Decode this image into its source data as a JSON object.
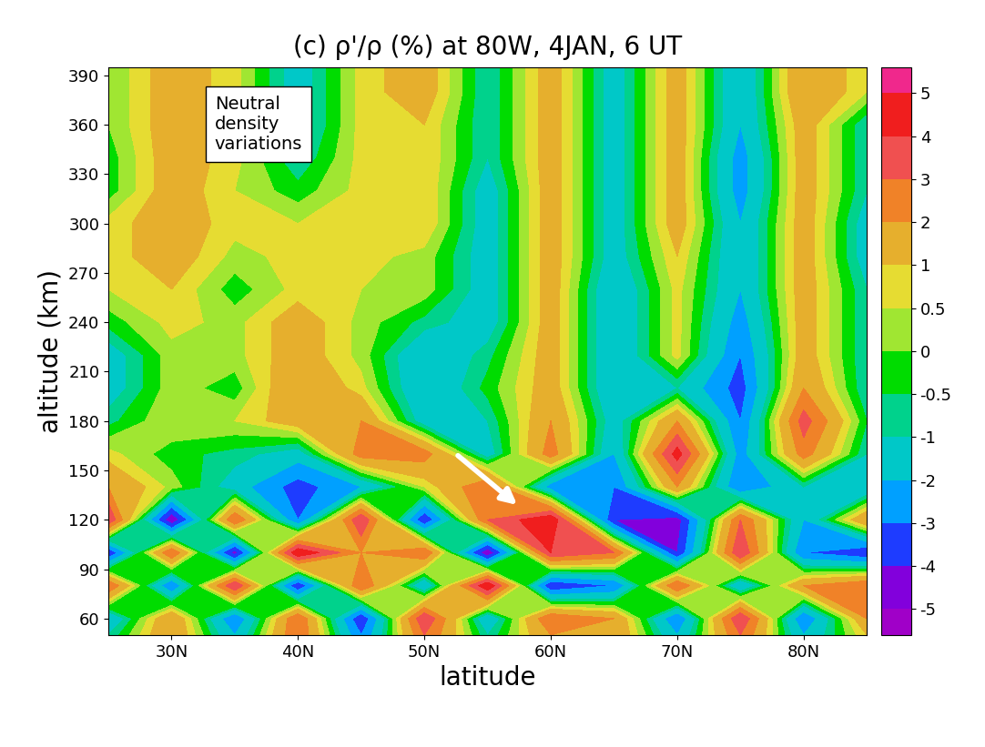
{
  "chart_data": {
    "type": "contour",
    "title": "(c) ρ'/ρ (%) at 80W, 4JAN, 6 UT",
    "x_label": "latitude",
    "y_label": "altitude (km)",
    "annotation": "Neutral\ndensity\nvariations",
    "x": [
      25,
      30,
      35,
      40,
      45,
      50,
      55,
      60,
      65,
      70,
      75,
      80,
      85
    ],
    "y": [
      50,
      60,
      80,
      100,
      120,
      140,
      160,
      180,
      200,
      220,
      240,
      260,
      280,
      300,
      320,
      340,
      360,
      380,
      395
    ],
    "cells": [
      [
        -1,
        2,
        -2,
        3,
        -3,
        3,
        -1,
        2,
        2,
        -2,
        3,
        -2,
        1
      ],
      [
        -2,
        2,
        -3,
        3,
        -4,
        4,
        -2,
        3,
        2,
        -3,
        4,
        -3,
        2
      ],
      [
        3,
        -3,
        4,
        -4,
        3,
        -2,
        5,
        -4,
        -3,
        3,
        -2,
        2,
        3
      ],
      [
        -4,
        3,
        -4.5,
        5,
        2,
        3,
        -5,
        4,
        3,
        -4,
        4,
        -3,
        -4
      ],
      [
        4,
        -5,
        3,
        -3,
        4,
        -4,
        3,
        5,
        -4,
        -4.5,
        3,
        -2,
        2
      ],
      [
        2,
        0.3,
        -1.5,
        -3.5,
        -2,
        0.5,
        3,
        -2.5,
        -3,
        2,
        -3,
        -1,
        -2
      ],
      [
        0.7,
        -0.3,
        -0.7,
        -1.5,
        2.5,
        2.5,
        -1.5,
        2.5,
        -2,
        4.5,
        -2.5,
        2.5,
        -1
      ],
      [
        -0.7,
        0.5,
        0.5,
        1.5,
        2,
        -1.5,
        -1,
        2,
        -1.5,
        2,
        -3,
        3.5,
        -0.5
      ],
      [
        -1.5,
        0.3,
        -0.3,
        2,
        0.7,
        -2,
        -0.3,
        1.5,
        -2,
        -1,
        -3.5,
        2,
        -1
      ],
      [
        -1.5,
        0.3,
        0.3,
        1.5,
        0.3,
        -2,
        -0.7,
        1.5,
        -2,
        0.7,
        -3,
        1.5,
        -1
      ],
      [
        -0.3,
        0.7,
        0.3,
        1.5,
        0.3,
        -0.7,
        -1.5,
        1.5,
        -2,
        0.7,
        -2.5,
        1.5,
        -1
      ],
      [
        0.5,
        1,
        -0.3,
        0.7,
        0.5,
        0.3,
        -1.5,
        1.5,
        -2,
        0.7,
        -2,
        1.5,
        -1
      ],
      [
        0.7,
        1.5,
        0.3,
        0.7,
        0.7,
        0.3,
        -1.5,
        1.5,
        -1.5,
        1,
        -2,
        1.5,
        -1.5
      ],
      [
        0.7,
        1.5,
        0.7,
        0.5,
        0.7,
        1,
        -1.5,
        1.5,
        -1.5,
        1.5,
        -2,
        1.5,
        -1.5
      ],
      [
        -0.3,
        1.5,
        0.5,
        -0.3,
        0.7,
        1,
        -1.5,
        1.5,
        -1.5,
        1.5,
        -2.5,
        1.5,
        -1
      ],
      [
        -0.3,
        1.5,
        0.7,
        -1,
        0.7,
        1,
        -1,
        1.5,
        -1.5,
        1.5,
        -2.5,
        1.5,
        -1
      ],
      [
        0,
        1.5,
        0.7,
        -1.5,
        0.7,
        1,
        -1,
        1.5,
        -1.5,
        1.5,
        -2,
        1.5,
        -1
      ],
      [
        0,
        1.5,
        0.7,
        -1.5,
        0.7,
        1.5,
        -1,
        1.5,
        -1.5,
        1.5,
        -2,
        2,
        0.5
      ],
      [
        0,
        1.5,
        0.7,
        -1.5,
        0.7,
        1.5,
        -1,
        1.5,
        -1.5,
        1.5,
        -2,
        2,
        0.5
      ]
    ],
    "xlim": [
      25,
      85
    ],
    "xticks": [
      {
        "value": 30,
        "label": "30N"
      },
      {
        "value": 40,
        "label": "40N"
      },
      {
        "value": 50,
        "label": "50N"
      },
      {
        "value": 60,
        "label": "60N"
      },
      {
        "value": 70,
        "label": "70N"
      },
      {
        "value": 80,
        "label": "80N"
      }
    ],
    "ylim": [
      50,
      395
    ],
    "yticks": [
      60,
      90,
      120,
      150,
      180,
      210,
      240,
      270,
      300,
      330,
      360,
      390
    ],
    "levels": [
      -5,
      -4,
      -3,
      -2,
      -1,
      -0.5,
      0,
      0.5,
      1,
      2,
      3,
      4,
      5
    ],
    "colors": [
      "#a000c8",
      "#8200dc",
      "#1e3cff",
      "#00a0ff",
      "#00c8c8",
      "#00d28c",
      "#00dc00",
      "#a0e632",
      "#e6dc32",
      "#e6af2d",
      "#f08228",
      "#f05050",
      "#f01e1e",
      "#f0288c"
    ],
    "colorbar_ticks": [
      5,
      4,
      3,
      2,
      1,
      0.5,
      0,
      -0.5,
      -1,
      -2,
      -3,
      -4,
      -5
    ],
    "grid": false
  }
}
